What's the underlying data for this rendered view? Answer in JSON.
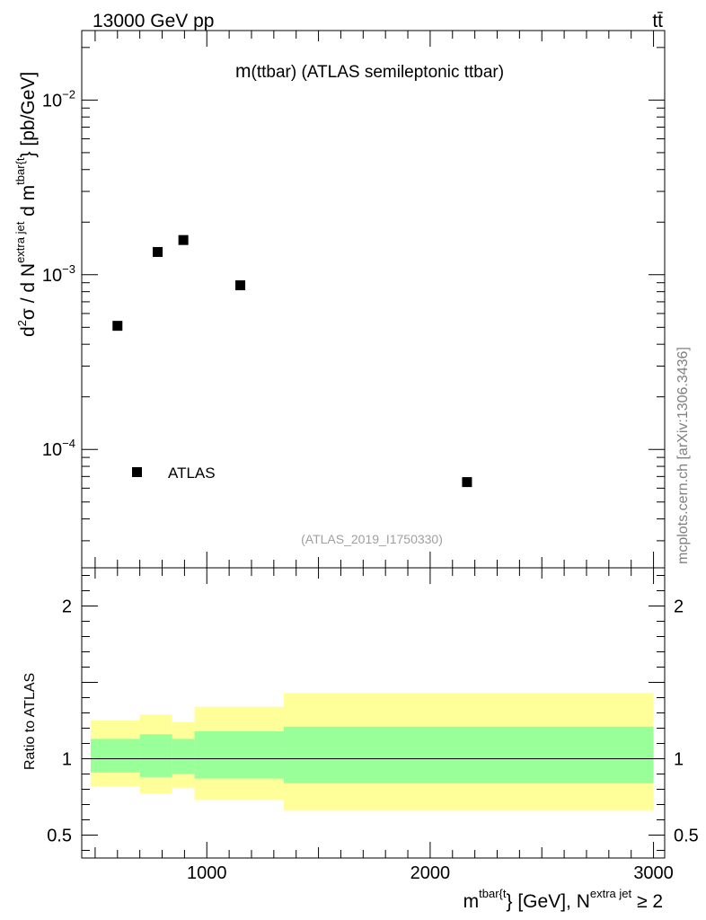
{
  "header": {
    "left": "13000 GeV pp",
    "right": "tt̄"
  },
  "side_label": "mcplots.cern.ch [arXiv:1306.3436]",
  "chart_data": [
    {
      "type": "scatter",
      "panel": "main",
      "title": "m(ttbar) (ATLAS semileptonic ttbar)",
      "title_parts": {
        "m": "m",
        "rest": "(ttbar) (ATLAS semileptonic ttbar)"
      },
      "watermark": "(ATLAS_2019_I1750330)",
      "ylabel": "d²σ / d N^{extra jet} d m^{tbar{t}} [pb/GeV]",
      "ylabel_parts": {
        "d1": "d",
        "exp2": "2",
        "sigma": "σ / d N",
        "sup_extra": "extra jet",
        "d2": " d m",
        "sup_tbar": "tbar{t",
        "tail": "} [pb/GeV]"
      },
      "ylog": true,
      "ylim": [
        2.1e-05,
        0.025
      ],
      "xlim": [
        440,
        3050
      ],
      "yticks": [
        {
          "value": 0.01,
          "base": "10",
          "exp": "−2"
        },
        {
          "value": 0.001,
          "base": "10",
          "exp": "−3"
        },
        {
          "value": 0.0001,
          "base": "10",
          "exp": "−4"
        }
      ],
      "legend": [
        {
          "name": "ATLAS",
          "marker": "square"
        }
      ],
      "legend_placement": "bottom-left",
      "series": [
        {
          "name": "ATLAS",
          "points": [
            {
              "x": 600,
              "y": 0.00051
            },
            {
              "x": 780,
              "y": 0.00135
            },
            {
              "x": 895,
              "y": 0.00158
            },
            {
              "x": 1150,
              "y": 0.00087
            },
            {
              "x": 2165,
              "y": 6.5e-05
            }
          ]
        }
      ]
    },
    {
      "type": "area",
      "panel": "ratio",
      "ylabel": "Ratio to ATLAS",
      "ylim": [
        0.35,
        2.25
      ],
      "xlim": [
        440,
        3050
      ],
      "yticks": [
        {
          "value": 2,
          "label": "2"
        },
        {
          "value": 1,
          "label": "1"
        },
        {
          "value": 0.5,
          "label": "0.5"
        }
      ],
      "xticks": [
        {
          "value": 1000,
          "label": "1000"
        },
        {
          "value": 2000,
          "label": "2000"
        },
        {
          "value": 3000,
          "label": "3000"
        }
      ],
      "xlabel": "m^{tbar{t}} [GeV], N^{extra jet} ≥ 2",
      "xlabel_parts": {
        "m": "m",
        "sup_tbar": "tbar{t",
        "mid": "} [GeV], N",
        "sup_extra": "extra jet",
        "tail": " ≥ 2"
      },
      "reference_line": 1,
      "bands": [
        {
          "name": "total uncertainty",
          "color": "#ffff99",
          "bins": [
            {
              "x0": 480,
              "x1": 700,
              "lo": 0.82,
              "hi": 1.25
            },
            {
              "x0": 700,
              "x1": 845,
              "lo": 0.77,
              "hi": 1.29
            },
            {
              "x0": 845,
              "x1": 945,
              "lo": 0.81,
              "hi": 1.24
            },
            {
              "x0": 945,
              "x1": 1345,
              "lo": 0.73,
              "hi": 1.34
            },
            {
              "x0": 1345,
              "x1": 3000,
              "lo": 0.66,
              "hi": 1.43
            }
          ]
        },
        {
          "name": "statistical uncertainty",
          "color": "#99ff99",
          "bins": [
            {
              "x0": 480,
              "x1": 700,
              "lo": 0.91,
              "hi": 1.13
            },
            {
              "x0": 700,
              "x1": 845,
              "lo": 0.88,
              "hi": 1.16
            },
            {
              "x0": 845,
              "x1": 945,
              "lo": 0.9,
              "hi": 1.13
            },
            {
              "x0": 945,
              "x1": 1345,
              "lo": 0.87,
              "hi": 1.18
            },
            {
              "x0": 1345,
              "x1": 3000,
              "lo": 0.84,
              "hi": 1.21
            }
          ]
        }
      ]
    }
  ]
}
